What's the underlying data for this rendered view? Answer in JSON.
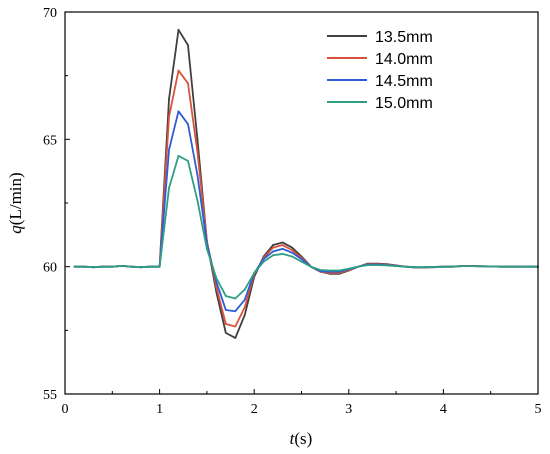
{
  "chart_data": {
    "type": "line",
    "xlabel_var": "t",
    "xlabel_unit": "(s)",
    "ylabel_var": "q",
    "ylabel_unit": "(L/min)",
    "xlim": [
      0,
      5
    ],
    "ylim": [
      55,
      70
    ],
    "xticks": [
      0,
      1,
      2,
      3,
      4,
      5
    ],
    "yticks": [
      55,
      60,
      65,
      70
    ],
    "grid": false,
    "legend_position": "top-right",
    "x": [
      0.1,
      0.2,
      0.3,
      0.4,
      0.5,
      0.6,
      0.7,
      0.8,
      0.9,
      1.0,
      1.1,
      1.2,
      1.3,
      1.4,
      1.5,
      1.6,
      1.7,
      1.8,
      1.9,
      2.0,
      2.1,
      2.2,
      2.3,
      2.4,
      2.5,
      2.6,
      2.7,
      2.8,
      2.9,
      3.0,
      3.1,
      3.2,
      3.3,
      3.4,
      3.5,
      3.6,
      3.7,
      3.8,
      3.9,
      4.0,
      4.1,
      4.2,
      4.3,
      4.4,
      4.5,
      4.6,
      4.7,
      4.8,
      4.9,
      5.0
    ],
    "series": [
      {
        "name": "13.5mm",
        "color": "#404040",
        "values": [
          60.0,
          60.0,
          59.98,
          60.0,
          60.0,
          60.03,
          60.0,
          59.98,
          60.0,
          60.0,
          66.6,
          69.3,
          68.7,
          65.0,
          61.0,
          59.0,
          57.4,
          57.2,
          58.1,
          59.6,
          60.4,
          60.85,
          60.95,
          60.75,
          60.4,
          60.0,
          59.8,
          59.72,
          59.72,
          59.85,
          60.0,
          60.12,
          60.12,
          60.1,
          60.05,
          60.0,
          59.97,
          59.97,
          59.98,
          60.0,
          60.0,
          60.03,
          60.03,
          60.02,
          60.01,
          60.0,
          60.0,
          60.0,
          60.0,
          60.0
        ]
      },
      {
        "name": "14.0mm",
        "color": "#d9533c",
        "values": [
          60.0,
          60.0,
          59.98,
          60.0,
          60.0,
          60.03,
          60.0,
          59.98,
          60.0,
          60.0,
          65.9,
          67.7,
          67.2,
          64.5,
          61.0,
          59.2,
          57.75,
          57.65,
          58.4,
          59.7,
          60.35,
          60.75,
          60.85,
          60.65,
          60.35,
          60.0,
          59.8,
          59.75,
          59.75,
          59.87,
          60.0,
          60.1,
          60.1,
          60.08,
          60.04,
          60.0,
          59.97,
          59.97,
          59.98,
          60.0,
          60.0,
          60.03,
          60.03,
          60.02,
          60.01,
          60.0,
          60.0,
          60.0,
          60.0,
          60.0
        ]
      },
      {
        "name": "14.5mm",
        "color": "#2f5bd6",
        "values": [
          60.0,
          60.0,
          59.98,
          60.0,
          60.0,
          60.03,
          60.0,
          59.98,
          60.0,
          60.0,
          64.6,
          66.1,
          65.6,
          63.6,
          60.9,
          59.4,
          58.3,
          58.25,
          58.7,
          59.75,
          60.3,
          60.6,
          60.7,
          60.55,
          60.3,
          60.0,
          59.82,
          59.8,
          59.8,
          59.9,
          60.0,
          60.08,
          60.08,
          60.06,
          60.03,
          60.0,
          59.98,
          59.98,
          59.99,
          60.0,
          60.0,
          60.02,
          60.02,
          60.01,
          60.01,
          60.0,
          60.0,
          60.0,
          60.0,
          60.0
        ]
      },
      {
        "name": "15.0mm",
        "color": "#2e9e84",
        "values": [
          60.0,
          60.0,
          59.98,
          60.0,
          60.0,
          60.03,
          60.0,
          59.98,
          60.0,
          60.0,
          63.1,
          64.35,
          64.15,
          62.6,
          60.7,
          59.55,
          58.85,
          58.75,
          59.1,
          59.75,
          60.2,
          60.45,
          60.5,
          60.4,
          60.2,
          60.0,
          59.87,
          59.85,
          59.85,
          59.92,
          60.0,
          60.06,
          60.06,
          60.05,
          60.02,
          60.0,
          59.98,
          59.98,
          59.99,
          60.0,
          60.0,
          60.02,
          60.02,
          60.01,
          60.01,
          60.0,
          60.0,
          60.0,
          60.0,
          60.0
        ]
      }
    ]
  }
}
